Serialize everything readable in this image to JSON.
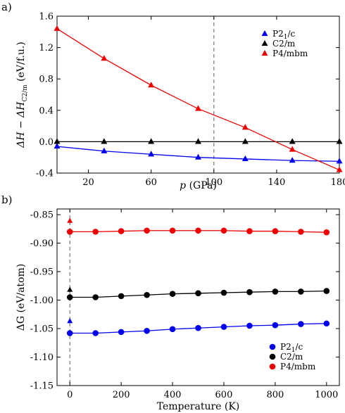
{
  "chart_data": [
    {
      "panel_label": "a)",
      "type": "line",
      "xlabel_main": "p",
      "xlabel_unit": " (GPa)",
      "ylabel_main": "ΔH − ΔH",
      "ylabel_sub": "C2/m",
      "ylabel_unit": " (eV/f.u.)",
      "xlim": [
        0,
        180
      ],
      "ylim": [
        -0.4,
        1.6
      ],
      "xticks": [
        20,
        60,
        100,
        140,
        180
      ],
      "yticks": [
        -0.4,
        0.0,
        0.4,
        0.8,
        1.2,
        1.6
      ],
      "ytick_labels": [
        "-0.4",
        "0.0",
        "0.4",
        "0.8",
        "1.2",
        "1.6"
      ],
      "vline_x": 100,
      "legend_position": "top-right",
      "series": [
        {
          "name_main": "P2",
          "name_sub": "1",
          "name_tail": "/c",
          "color": "#0000ee",
          "marker": "triangle",
          "x": [
            0,
            30,
            60,
            90,
            120,
            150,
            180
          ],
          "y": [
            -0.06,
            -0.12,
            -0.16,
            -0.2,
            -0.22,
            -0.24,
            -0.25
          ]
        },
        {
          "name_main": "C2/m",
          "name_sub": "",
          "name_tail": "",
          "color": "#000000",
          "marker": "triangle",
          "x": [
            0,
            30,
            60,
            90,
            120,
            150,
            180
          ],
          "y": [
            0,
            0,
            0,
            0,
            0,
            0,
            0
          ]
        },
        {
          "name_main": "P4/mbm",
          "name_sub": "",
          "name_tail": "",
          "color": "#ee0000",
          "marker": "triangle",
          "x": [
            0,
            30,
            60,
            90,
            120,
            150,
            180
          ],
          "y": [
            1.44,
            1.06,
            0.72,
            0.42,
            0.18,
            -0.1,
            -0.36
          ]
        }
      ]
    },
    {
      "panel_label": "b)",
      "type": "line",
      "xlabel": "Temperature (K)",
      "ylabel": "ΔG (eV/atom)",
      "xlim": [
        -50,
        1050
      ],
      "ylim": [
        -1.15,
        -0.84
      ],
      "xticks": [
        0,
        200,
        400,
        600,
        800,
        1000
      ],
      "yticks": [
        -1.15,
        -1.1,
        -1.05,
        -1.0,
        -0.95,
        -0.9,
        -0.85
      ],
      "ytick_labels": [
        "-1.15",
        "-1.10",
        "-1.05",
        "-1.00",
        "-0.95",
        "-0.90",
        "-0.85"
      ],
      "vline_x": 0,
      "legend_position": "bottom-right",
      "series": [
        {
          "name_main": "P2",
          "name_sub": "1",
          "name_tail": "/c",
          "color": "#0000ee",
          "marker": "circle",
          "x": [
            0,
            100,
            200,
            300,
            400,
            500,
            600,
            700,
            800,
            900,
            1000
          ],
          "y": [
            -1.058,
            -1.058,
            -1.056,
            -1.054,
            -1.051,
            -1.049,
            -1.047,
            -1.045,
            -1.044,
            -1.042,
            -1.041
          ],
          "zero_point": -1.037
        },
        {
          "name_main": "C2/m",
          "name_sub": "",
          "name_tail": "",
          "color": "#000000",
          "marker": "circle",
          "x": [
            0,
            100,
            200,
            300,
            400,
            500,
            600,
            700,
            800,
            900,
            1000
          ],
          "y": [
            -0.995,
            -0.995,
            -0.993,
            -0.991,
            -0.989,
            -0.988,
            -0.987,
            -0.986,
            -0.985,
            -0.985,
            -0.984
          ],
          "zero_point": -0.982
        },
        {
          "name_main": "P4/mbm",
          "name_sub": "",
          "name_tail": "",
          "color": "#ee0000",
          "marker": "circle",
          "x": [
            0,
            100,
            200,
            300,
            400,
            500,
            600,
            700,
            800,
            900,
            1000
          ],
          "y": [
            -0.88,
            -0.88,
            -0.879,
            -0.878,
            -0.878,
            -0.878,
            -0.878,
            -0.879,
            -0.879,
            -0.88,
            -0.881
          ],
          "zero_point": -0.861
        }
      ]
    }
  ]
}
